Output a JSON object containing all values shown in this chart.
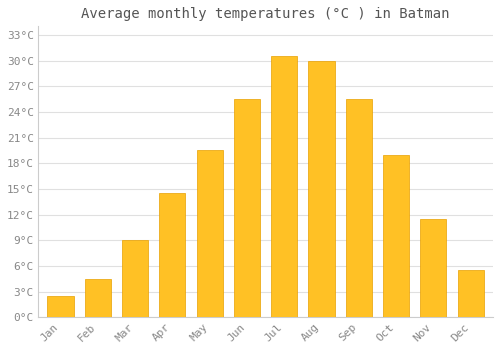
{
  "months": [
    "Jan",
    "Feb",
    "Mar",
    "Apr",
    "May",
    "Jun",
    "Jul",
    "Aug",
    "Sep",
    "Oct",
    "Nov",
    "Dec"
  ],
  "values": [
    2.5,
    4.5,
    9.0,
    14.5,
    19.5,
    25.5,
    30.5,
    30.0,
    25.5,
    19.0,
    11.5,
    5.5
  ],
  "bar_color": "#FFC125",
  "bar_edge_color": "#E8A000",
  "title": "Average monthly temperatures (°C ) in Batman",
  "ylim": [
    0,
    34
  ],
  "yticks": [
    0,
    3,
    6,
    9,
    12,
    15,
    18,
    21,
    24,
    27,
    30,
    33
  ],
  "ytick_labels": [
    "0°C",
    "3°C",
    "6°C",
    "9°C",
    "12°C",
    "15°C",
    "18°C",
    "21°C",
    "24°C",
    "27°C",
    "30°C",
    "33°C"
  ],
  "background_color": "#ffffff",
  "plot_bg_color": "#ffffff",
  "grid_color": "#e0e0e0",
  "title_fontsize": 10,
  "tick_fontsize": 8,
  "title_color": "#555555",
  "tick_color": "#888888"
}
